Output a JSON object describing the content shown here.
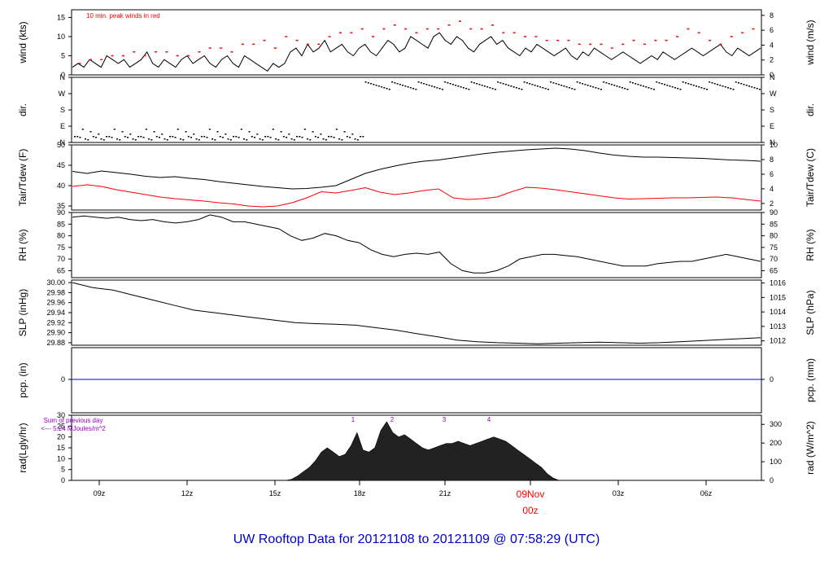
{
  "page_title": "UW Rooftop Data for 20121108  to  20121109 @ 07:58:29  (UTC)",
  "x_axis": {
    "ticks": [
      "09z",
      "12z",
      "15z",
      "18z",
      "21z",
      "09Nov",
      "03z",
      "06z"
    ],
    "date_label": "09Nov",
    "date_sub": "00z"
  },
  "colors": {
    "axis": "#000000",
    "tdew": "#ff0000",
    "peak": "#ff0000",
    "pcp_line": "#0000cc",
    "title": "#0000cc",
    "date": "#ff0000",
    "annot": "#9900cc"
  },
  "chart_data": [
    {
      "type": "line",
      "name_left": "wind (kts)",
      "name_right": "wind (m/s)",
      "annotation": "10 min. peak winds in red",
      "ylim_left": [
        0,
        17
      ],
      "ylim_right": [
        0,
        8.75
      ],
      "left_ticks": [
        "0",
        "5",
        "10",
        "15"
      ],
      "right_ticks": [
        "0",
        "2",
        "4",
        "6",
        "8"
      ],
      "series": [
        {
          "values_kts": [
            2,
            3,
            2,
            4,
            3,
            2,
            5,
            4,
            3,
            4,
            2,
            3,
            4,
            6,
            3,
            2,
            4,
            3,
            2,
            4,
            5,
            3,
            4,
            5,
            3,
            2,
            4,
            5,
            3,
            2,
            5,
            4,
            3,
            2,
            1,
            3,
            2,
            3,
            6,
            7,
            5,
            8,
            6,
            7,
            9,
            6,
            7,
            8,
            6,
            5,
            7,
            8,
            6,
            5,
            7,
            9,
            8,
            6,
            7,
            10,
            9,
            8,
            7,
            10,
            11,
            9,
            8,
            10,
            9,
            7,
            6,
            8,
            9,
            10,
            8,
            9,
            7,
            6,
            5,
            7,
            6,
            8,
            7,
            6,
            5,
            6,
            7,
            5,
            4,
            6,
            5,
            7,
            6,
            5,
            4,
            5,
            6,
            5,
            4,
            3,
            4,
            5,
            4,
            6,
            5,
            4,
            5,
            6,
            7,
            6,
            5,
            6,
            7,
            8,
            6,
            5,
            7,
            6,
            5,
            6,
            7
          ]
        },
        {
          "peaks_kts": [
            3,
            4,
            4,
            5,
            5,
            6,
            5,
            6,
            6,
            5,
            5,
            6,
            7,
            7,
            6,
            8,
            8,
            9,
            7,
            10,
            9,
            8,
            8,
            10,
            11,
            11,
            12,
            10,
            12,
            13,
            12,
            11,
            12,
            12,
            13,
            14,
            12,
            12,
            13,
            11,
            11,
            10,
            10,
            9,
            9,
            9,
            8,
            8,
            8,
            7,
            8,
            9,
            8,
            9,
            9,
            10,
            12,
            11,
            9,
            8,
            10,
            11,
            12
          ]
        }
      ]
    },
    {
      "type": "scatter",
      "name_left": "dir.",
      "name_right": "dir.",
      "left_ticks": [
        "N",
        "E",
        "S",
        "W",
        "N"
      ],
      "right_ticks": [
        "N",
        "E",
        "S",
        "W",
        "N"
      ]
    },
    {
      "type": "line",
      "name_left": "Tair/Tdew (F)",
      "name_right": "Tair/Tdew (C)",
      "ylim_left": [
        34,
        50
      ],
      "ylim_right": [
        1.1,
        10
      ],
      "left_ticks": [
        "35",
        "40",
        "45",
        "50"
      ],
      "right_ticks": [
        "2",
        "4",
        "6",
        "8",
        "10"
      ],
      "series": [
        {
          "name": "Tair",
          "values": [
            43.5,
            43.0,
            43.6,
            43.2,
            42.8,
            42.3,
            42.0,
            42.2,
            41.8,
            41.5,
            41.0,
            40.6,
            40.2,
            39.8,
            39.5,
            39.2,
            39.3,
            39.6,
            40.0,
            41.5,
            43.0,
            44.0,
            44.8,
            45.5,
            46.0,
            46.3,
            46.8,
            47.3,
            47.8,
            48.2,
            48.5,
            48.8,
            49.0,
            49.2,
            49.0,
            48.6,
            48.0,
            47.5,
            47.2,
            47.0,
            47.0,
            46.9,
            46.8,
            46.7,
            46.5,
            46.3,
            46.2,
            46.0
          ]
        },
        {
          "name": "Tdew",
          "values": [
            39.8,
            40.2,
            39.8,
            39.0,
            38.4,
            37.8,
            37.2,
            36.8,
            36.5,
            36.2,
            35.8,
            35.5,
            35.0,
            34.8,
            35.0,
            35.8,
            37.0,
            38.5,
            38.2,
            38.8,
            39.5,
            38.4,
            37.8,
            38.2,
            38.8,
            39.2,
            37.0,
            36.6,
            36.8,
            37.2,
            38.5,
            39.6,
            39.4,
            39.0,
            38.5,
            38.0,
            37.5,
            37.0,
            36.7,
            36.8,
            36.9,
            37.0,
            37.0,
            37.1,
            37.2,
            37.0,
            36.6,
            36.2
          ]
        }
      ]
    },
    {
      "type": "line",
      "name_left": "RH (%)",
      "name_right": "RH (%)",
      "ylim_left": [
        62,
        90
      ],
      "ylim_right": [
        62,
        90
      ],
      "left_ticks": [
        "65",
        "70",
        "75",
        "80",
        "85",
        "90"
      ],
      "right_ticks": [
        "65",
        "70",
        "75",
        "80",
        "85",
        "90"
      ],
      "series": [
        {
          "name": "RH",
          "values": [
            88,
            88.5,
            88,
            87.5,
            88,
            87,
            86.5,
            87,
            86,
            85.5,
            86,
            87,
            89,
            88,
            86,
            86,
            85,
            84,
            83,
            80,
            78,
            79,
            81,
            80,
            78,
            77,
            74,
            72,
            71,
            72,
            72.5,
            72,
            73,
            68,
            65,
            64,
            64,
            65,
            67,
            70,
            71,
            72,
            72,
            71.5,
            71,
            70,
            69,
            68,
            67,
            67,
            67,
            68,
            68.5,
            69,
            69,
            70,
            71,
            72,
            71,
            70,
            69
          ]
        }
      ]
    },
    {
      "type": "line",
      "name_left": "SLP (inHg)",
      "name_right": "SLP (hPa)",
      "ylim_left": [
        29.875,
        30.005
      ],
      "ylim_right": [
        1011.7,
        1016.2
      ],
      "left_ticks": [
        "29.88",
        "29.90",
        "29.92",
        "29.94",
        "29.96",
        "29.98",
        "30.00"
      ],
      "right_ticks": [
        "1012",
        "1013",
        "1014",
        "1015",
        "1016"
      ],
      "series": [
        {
          "name": "SLP",
          "values": [
            30.0,
            29.99,
            29.985,
            29.975,
            29.965,
            29.955,
            29.945,
            29.94,
            29.935,
            29.93,
            29.925,
            29.92,
            29.918,
            29.917,
            29.915,
            29.91,
            29.905,
            29.898,
            29.892,
            29.885,
            29.882,
            29.88,
            29.879,
            29.878,
            29.879,
            29.88,
            29.881,
            29.88,
            29.879,
            29.88,
            29.882,
            29.884,
            29.886,
            29.888,
            29.89
          ]
        }
      ]
    },
    {
      "type": "line",
      "name_left": "pcp. (in)",
      "name_right": "pcp. (mm)",
      "left_ticks": [
        "0"
      ],
      "right_ticks": [
        "0"
      ],
      "series": [
        {
          "name": "pcp",
          "values": [
            0,
            0
          ]
        }
      ]
    },
    {
      "type": "area",
      "name_left": "rad(Lgly/hr)",
      "name_right": "rad (W/m^2)",
      "annot1": "Sum of previous day",
      "annot2": "<--- 5.24 MJoules/m^2",
      "hour_marks": [
        "1",
        "2",
        "3",
        "4"
      ],
      "ylim_left": [
        0,
        30
      ],
      "ylim_right": [
        0,
        349
      ],
      "left_ticks": [
        "0",
        "5",
        "10",
        "15",
        "20",
        "25",
        "30"
      ],
      "right_ticks": [
        "0",
        "100",
        "200",
        "300"
      ],
      "series": [
        {
          "name": "rad",
          "values": [
            0,
            0,
            0,
            0,
            0,
            0,
            0,
            0,
            0,
            0,
            0,
            0,
            0,
            0,
            0,
            0,
            0,
            0,
            0,
            0,
            0,
            0,
            0,
            0,
            0,
            0,
            0,
            0,
            0,
            0,
            0,
            0,
            0,
            0,
            0,
            0,
            0,
            0.5,
            2,
            4,
            6,
            9,
            13,
            15,
            13,
            11,
            12,
            16,
            22,
            14,
            13,
            15,
            23,
            27,
            22,
            20,
            21,
            19,
            17,
            15,
            14,
            15,
            16,
            17,
            17,
            18,
            17,
            16,
            17,
            18,
            19,
            20,
            19,
            18,
            16,
            14,
            12,
            10,
            8,
            6,
            3,
            1,
            0,
            0,
            0,
            0,
            0,
            0,
            0,
            0,
            0,
            0,
            0,
            0,
            0,
            0,
            0,
            0,
            0,
            0,
            0,
            0,
            0,
            0,
            0,
            0,
            0,
            0,
            0,
            0,
            0,
            0,
            0,
            0,
            0,
            0,
            0
          ]
        }
      ]
    }
  ]
}
